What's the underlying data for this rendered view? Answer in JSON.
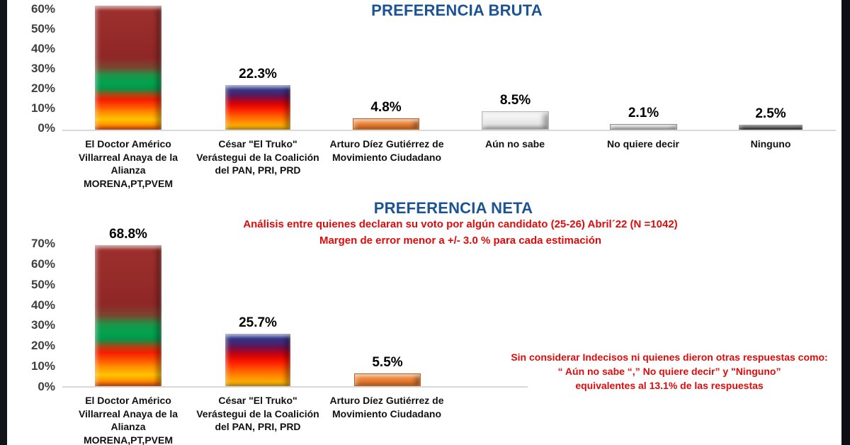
{
  "colors": {
    "title_blue": "#1b5394",
    "annotation_red": "#df0b0b",
    "axis_label_gray": "#3f3f3f",
    "axis_line_gray": "#d9d9d9",
    "bar_orange_mc": "#ed7d31",
    "bar_white_unknown": "#f2f2f2",
    "bar_gray_nosay": "#d0d0d0",
    "bar_black_ninguno": "#1f1f1f",
    "edge_strip": "#13131a"
  },
  "chart_data": [
    {
      "type": "bar",
      "title": "PREFERENCIA BRUTA",
      "categories": [
        "El Doctor Américo\nVillarreal Anaya de la\nAlianza\nMORENA,PT,PVEM",
        "César \"El Truko\"\nVerástegui de la Coalición\ndel PAN, PRI, PRD",
        "Arturo Díez Gutiérrez  de\nMovimiento Ciudadano",
        "Aún no sabe",
        "No quiere decir",
        "Ninguno"
      ],
      "values": [
        null,
        22.3,
        4.8,
        8.5,
        2.1,
        2.5
      ],
      "value_labels": [
        "",
        "22.3%",
        "4.8%",
        "8.5%",
        "2.1%",
        "2.5%"
      ],
      "yticks": [
        "60%",
        "50%",
        "40%",
        "30%",
        "20%",
        "10%",
        "0%"
      ],
      "ylim": [
        0,
        60
      ],
      "grid": false,
      "legend": "none",
      "note_first_bar": "bar exceeds axis; its value label is cropped out of the image"
    },
    {
      "type": "bar",
      "title": "PREFERENCIA NETA",
      "subtitle_lines": [
        "Análisis entre quienes declaran su voto por algún candidato (25-26) Abril´22 (N =1042)",
        "Margen de error menor a +/- 3.0 %  para cada estimación"
      ],
      "categories": [
        "El Doctor Américo\nVillarreal Anaya de la\nAlianza\nMORENA,PT,PVEM",
        "César \"El Truko\"\nVerástegui de la Coalición\ndel PAN, PRI, PRD",
        "Arturo Díez Gutiérrez  de\nMovimiento Ciudadano"
      ],
      "values": [
        68.8,
        25.7,
        5.5
      ],
      "value_labels": [
        "68.8%",
        "25.7%",
        "5.5%"
      ],
      "yticks": [
        "70%",
        "60%",
        "50%",
        "40%",
        "30%",
        "20%",
        "10%",
        "0%"
      ],
      "ylim": [
        0,
        70
      ],
      "grid": false,
      "legend": "none",
      "annotation_lines": [
        "Sin considerar Indecisos ni quienes dieron otras respuestas como:",
        "“ Aún no sabe “,” No quiere decir” y \"Ninguno”",
        "equivalentes al   13.1% de las respuestas"
      ]
    }
  ]
}
